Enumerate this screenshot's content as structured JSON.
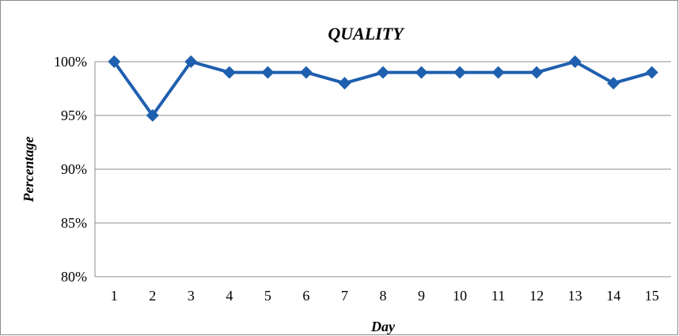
{
  "chart_data": {
    "type": "line",
    "title": "QUALITY",
    "xlabel": "Day",
    "ylabel": "Percentage",
    "categories": [
      "1",
      "2",
      "3",
      "4",
      "5",
      "6",
      "7",
      "8",
      "9",
      "10",
      "11",
      "12",
      "13",
      "14",
      "15"
    ],
    "series": [
      {
        "values": [
          100,
          95,
          100,
          99,
          99,
          99,
          98,
          99,
          99,
          99,
          99,
          99,
          100,
          98,
          99
        ]
      }
    ],
    "ylim": [
      80,
      100
    ],
    "yticks": [
      80,
      85,
      90,
      95,
      100
    ],
    "ytick_labels": [
      "80%",
      "85%",
      "90%",
      "95%",
      "100%"
    ],
    "grid": "horizontal",
    "legend": "none",
    "line_color": "#1F5FAF",
    "marker": "diamond"
  }
}
